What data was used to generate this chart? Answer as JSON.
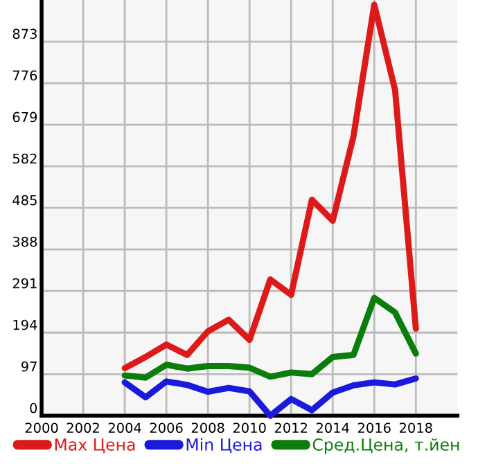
{
  "chart_data": {
    "type": "line",
    "x": [
      2004,
      2005,
      2006,
      2007,
      2008,
      2009,
      2010,
      2011,
      2012,
      2013,
      2014,
      2015,
      2016,
      2017,
      2018
    ],
    "series": [
      {
        "name": "Max Цена",
        "color": "#dd1a1a",
        "values": [
          111,
          137,
          166,
          142,
          197,
          224,
          177,
          318,
          282,
          504,
          455,
          652,
          959,
          760,
          203
        ]
      },
      {
        "name": "Min Цена",
        "color": "#1a1add",
        "values": [
          78,
          43,
          80,
          72,
          56,
          65,
          57,
          0,
          39,
          13,
          54,
          71,
          78,
          73,
          87
        ]
      },
      {
        "name": "Сред.Цена, т.йен",
        "color": "#0a7d0a",
        "values": [
          94,
          89,
          119,
          110,
          116,
          116,
          112,
          91,
          101,
          97,
          137,
          142,
          275,
          241,
          145
        ]
      }
    ],
    "xlim": [
      2000,
      2020
    ],
    "xticks": [
      2000,
      2002,
      2004,
      2006,
      2008,
      2010,
      2012,
      2014,
      2016,
      2018
    ],
    "ylim": [
      0,
      970
    ],
    "yticks": [
      0,
      97,
      194,
      291,
      388,
      485,
      582,
      679,
      776,
      873
    ],
    "grid": true,
    "legend": "bottom",
    "marker": "none",
    "line_style": "solid"
  }
}
